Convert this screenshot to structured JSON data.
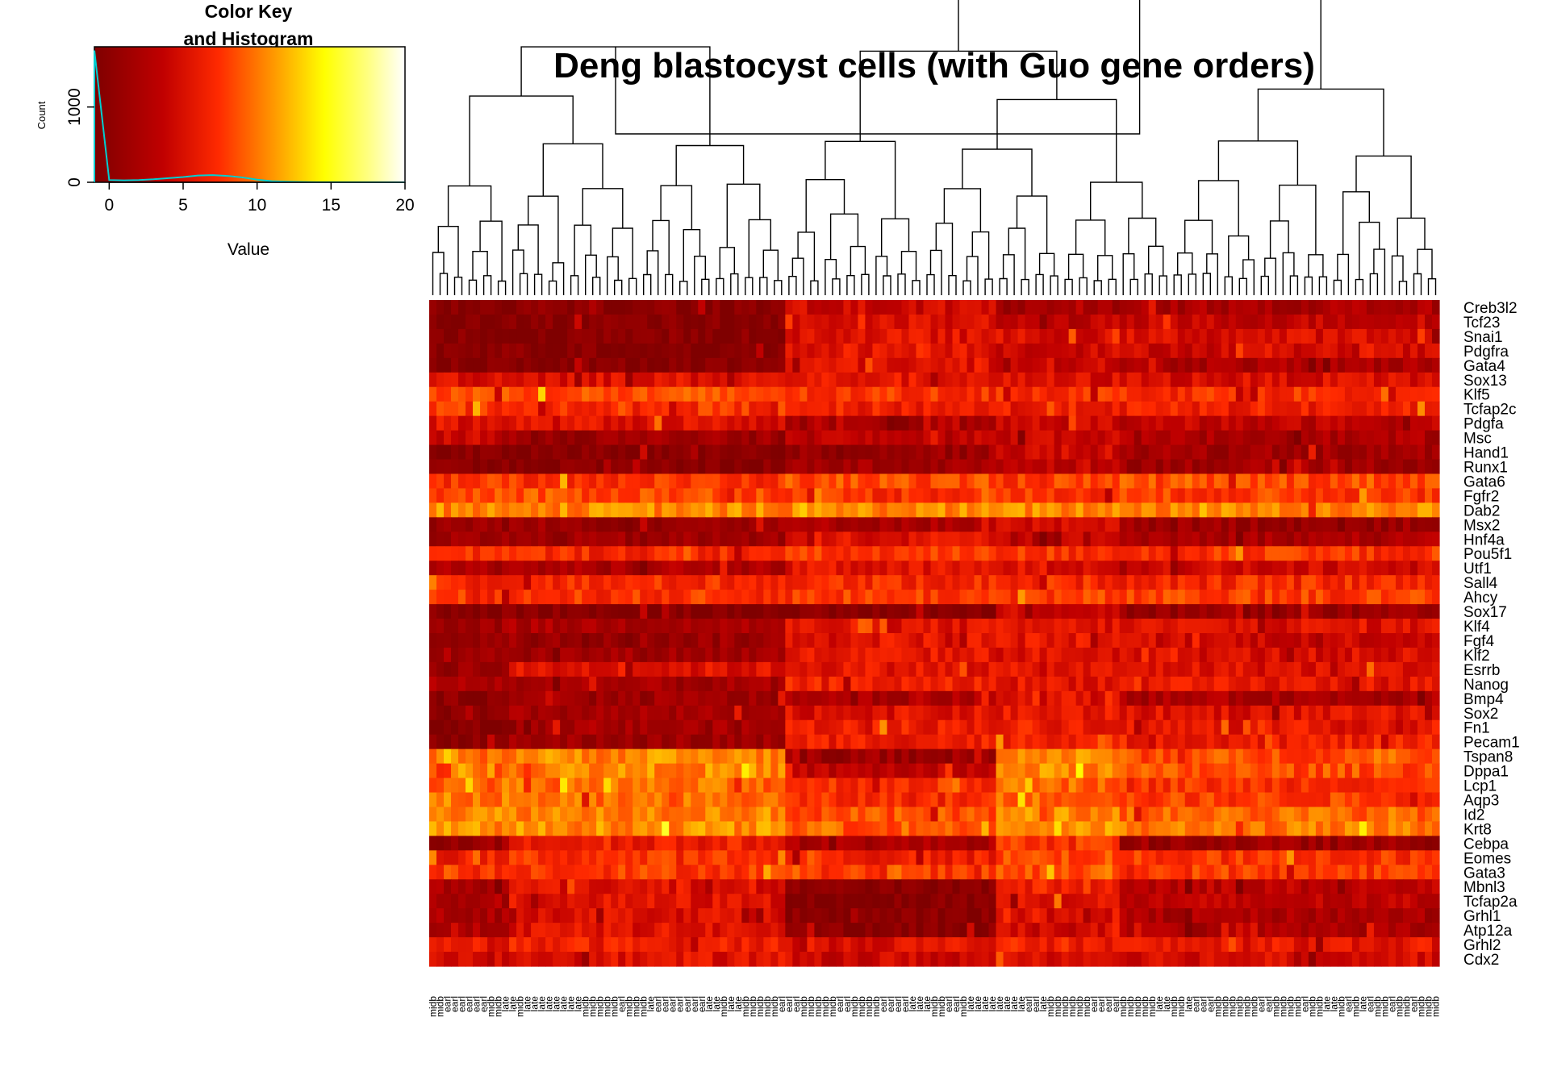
{
  "chart_data": {
    "type": "heatmap",
    "title": "Deng blastocyst cells (with Guo gene orders)",
    "color_key": {
      "title_line1": "Color Key",
      "title_line2": "and Histogram",
      "xlabel": "Value",
      "ylabel": "Count",
      "x_ticks": [
        "0",
        "5",
        "10",
        "15",
        "20"
      ],
      "x_tick_values": [
        0,
        5,
        10,
        15,
        20
      ],
      "xlim": [
        -1,
        20
      ],
      "y_ticks": [
        "0",
        "1000"
      ],
      "y_tick_values": [
        0,
        1000
      ],
      "ylim": [
        0,
        1800
      ],
      "colors": [
        "#7f0000",
        "#ff2a00",
        "#ffff00",
        "#ffffff"
      ],
      "histogram_color": "#00ced1",
      "histogram_x": [
        -1,
        0,
        1,
        2,
        3,
        4,
        5,
        6,
        7,
        8,
        9,
        10,
        11,
        12,
        13,
        14,
        15,
        20
      ],
      "histogram_y": [
        1750,
        30,
        25,
        30,
        40,
        55,
        70,
        90,
        95,
        85,
        65,
        35,
        15,
        8,
        4,
        2,
        1,
        0
      ]
    },
    "genes": [
      "Creb3l2",
      "Tcf23",
      "Snai1",
      "Pdgfra",
      "Gata4",
      "Sox13",
      "Klf5",
      "Tcfap2c",
      "Pdgfa",
      "Msc",
      "Hand1",
      "Runx1",
      "Gata6",
      "Fgfr2",
      "Dab2",
      "Msx2",
      "Hnf4a",
      "Pou5f1",
      "Utf1",
      "Sall4",
      "Ahcy",
      "Sox17",
      "Klf4",
      "Fgf4",
      "Klf2",
      "Esrrb",
      "Nanog",
      "Bmp4",
      "Sox2",
      "Fn1",
      "Pecam1",
      "Tspan8",
      "Dppa1",
      "Lcp1",
      "Aqp3",
      "Id2",
      "Krt8",
      "Cebpa",
      "Eomes",
      "Gata3",
      "Mbnl3",
      "Tcfap2a",
      "Grhl1",
      "Atp12a",
      "Grhl2",
      "Cdx2"
    ],
    "column_labels": [
      "midb",
      "midb",
      "earl",
      "earl",
      "earl",
      "earl",
      "earl",
      "earl",
      "midb",
      "midb",
      "late",
      "late",
      "midb",
      "late",
      "late",
      "late",
      "late",
      "late",
      "late",
      "late",
      "late",
      "midb",
      "midb",
      "midb",
      "midb",
      "midb",
      "earl",
      "midb",
      "midb",
      "midb",
      "late",
      "earl",
      "earl",
      "earl",
      "earl",
      "earl",
      "earl",
      "earl",
      "late",
      "late",
      "midb",
      "late",
      "late",
      "midb",
      "midb",
      "midb",
      "midb",
      "midb",
      "earl",
      "earl",
      "earl",
      "midb",
      "midb",
      "midb",
      "midb",
      "midb",
      "earl",
      "earl",
      "midb",
      "midb",
      "midb",
      "midb",
      "earl",
      "earl",
      "earl",
      "earl",
      "late",
      "late",
      "late",
      "midb",
      "midb",
      "earl",
      "earl",
      "midb",
      "late",
      "late",
      "late",
      "late",
      "late",
      "late",
      "late",
      "late",
      "earl",
      "earl",
      "late",
      "midb",
      "midb",
      "midb",
      "midb",
      "midb",
      "midb",
      "earl",
      "earl",
      "earl",
      "earl",
      "midb",
      "midb",
      "midb",
      "midb",
      "midb",
      "late",
      "late",
      "midb",
      "midb",
      "late",
      "earl",
      "earl",
      "earl",
      "midb",
      "midb",
      "midb",
      "midb",
      "midb",
      "midb",
      "earl",
      "earl",
      "midb",
      "midb",
      "midb",
      "midb",
      "earl",
      "midb",
      "midb",
      "late",
      "late",
      "midb",
      "earl",
      "midb",
      "late",
      "earl",
      "midb",
      "midb",
      "earl",
      "midb",
      "midb",
      "earl",
      "midb",
      "midb",
      "midb"
    ],
    "value_range": [
      0,
      20
    ]
  }
}
